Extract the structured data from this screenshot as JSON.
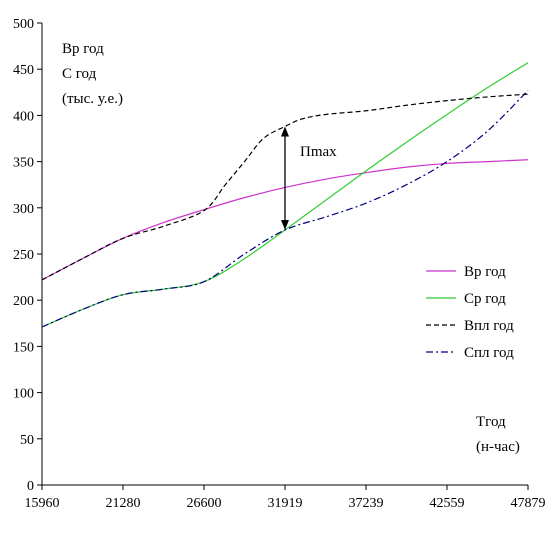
{
  "chart_data": {
    "type": "line",
    "x_ticks": [
      "15960",
      "21280",
      "26600",
      "31919",
      "37239",
      "42559",
      "47879"
    ],
    "x_range": [
      15960,
      47879
    ],
    "y_range": [
      0,
      500
    ],
    "y_ticks": [
      "0",
      "50",
      "100",
      "150",
      "200",
      "250",
      "300",
      "350",
      "400",
      "450",
      "500"
    ],
    "grid": false,
    "legend_placement": "right",
    "ylabel_lines": [
      "Вр год",
      "С год",
      "(тыс. у.е.)"
    ],
    "xlabel_lines": [
      "Тгод",
      "(н-час)"
    ],
    "annotation": {
      "text": "Пmax",
      "x": 31919,
      "y_from": 276,
      "y_to": 388
    },
    "series": [
      {
        "name": "Вр год",
        "color": "#cc33cc",
        "dash": "solid",
        "x": [
          15960,
          18620,
          21280,
          23940,
          26600,
          29260,
          31919,
          34579,
          37239,
          39899,
          42559,
          45219,
          47879
        ],
        "y": [
          222,
          245,
          267,
          284,
          298,
          311,
          322,
          331,
          338,
          344,
          348,
          350,
          352
        ]
      },
      {
        "name": "Ср год",
        "color": "#33cc33",
        "dash": "solid",
        "x": [
          15960,
          18620,
          21280,
          23940,
          26600,
          29260,
          31919,
          34579,
          37239,
          39899,
          42559,
          45219,
          47879
        ],
        "y": [
          171,
          190,
          206,
          212,
          220,
          245,
          276,
          308,
          340,
          371,
          401,
          430,
          457
        ]
      },
      {
        "name": "Впл год",
        "color": "#000000",
        "dash": "5,3",
        "x": [
          15960,
          18620,
          21280,
          23940,
          26600,
          28000,
          29260,
          30500,
          31919,
          33000,
          34579,
          37239,
          39899,
          42559,
          45219,
          47879
        ],
        "y": [
          222,
          245,
          267,
          280,
          297,
          325,
          350,
          375,
          388,
          396,
          401,
          405,
          411,
          416,
          420,
          423
        ]
      },
      {
        "name": "Спл год",
        "color": "#000080",
        "dash": "7,3,2,3",
        "x": [
          15960,
          18620,
          21280,
          23940,
          26600,
          29260,
          31919,
          34579,
          37239,
          39899,
          42559,
          45219,
          47879
        ],
        "y": [
          171,
          190,
          206,
          212,
          220,
          250,
          276,
          290,
          305,
          325,
          350,
          383,
          427
        ]
      }
    ]
  }
}
